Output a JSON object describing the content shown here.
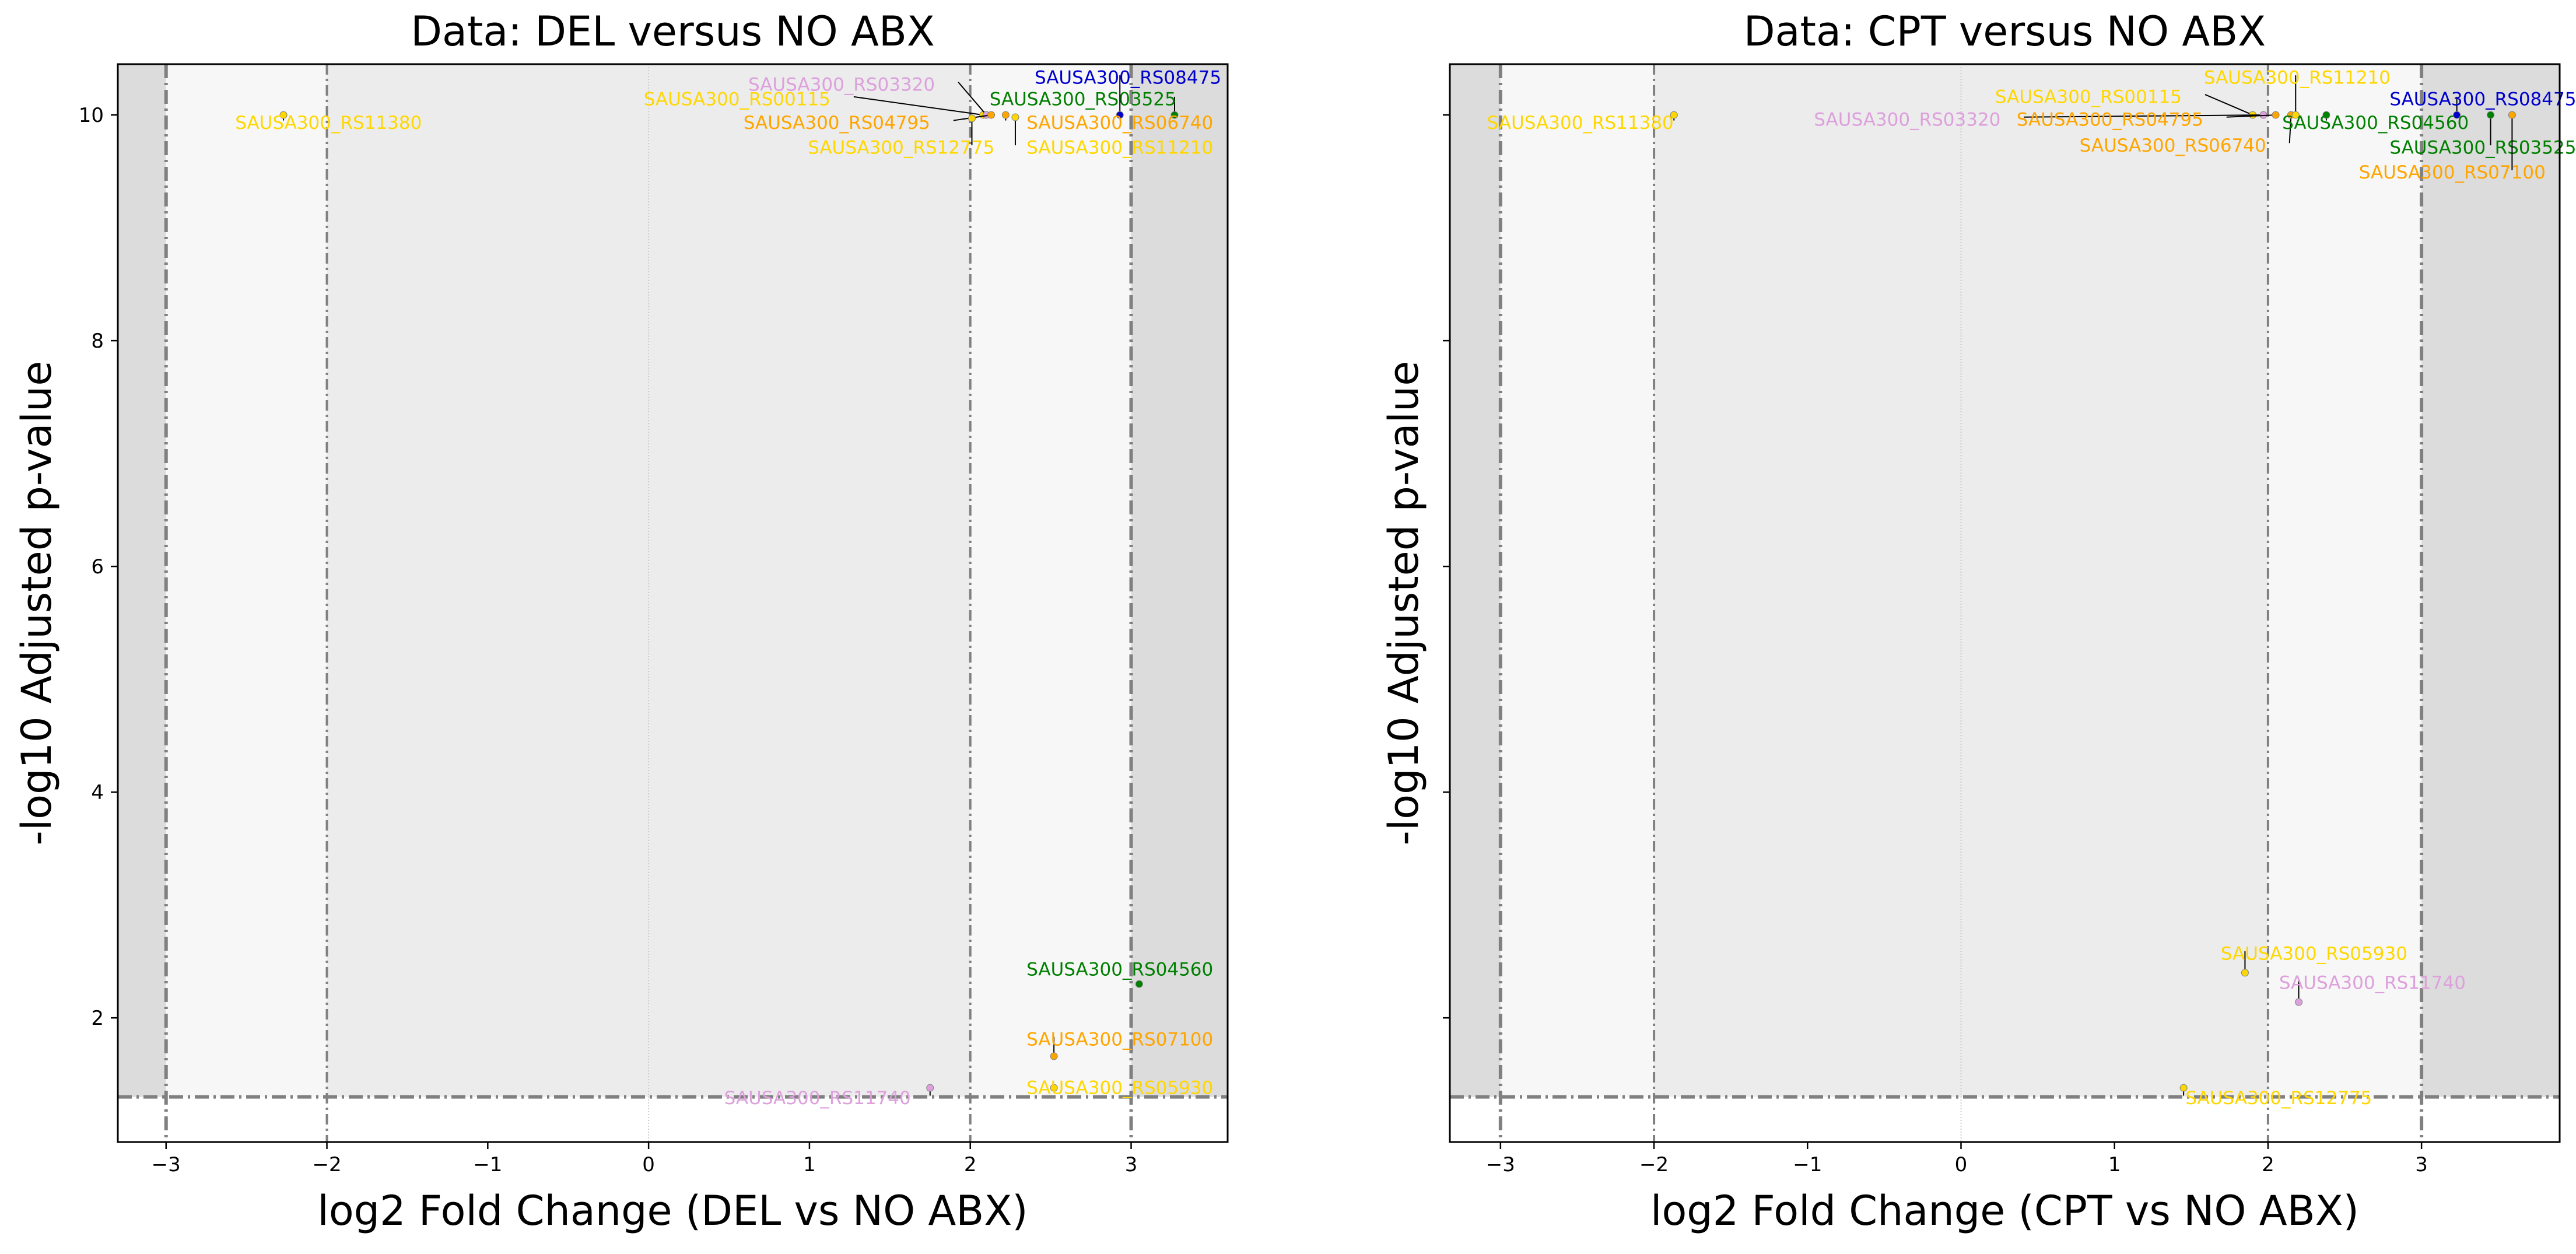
{
  "colors": {
    "background": "#ffffff",
    "band_outer": "#dcdcdc",
    "band_mid": "#f7f7f7",
    "band_inner": "#ececec",
    "threshold_line": "#808080",
    "zero_line": "#cccccc",
    "text": "#000000"
  },
  "chart_data": [
    {
      "type": "scatter",
      "title": "Data: DEL versus NO ABX",
      "xlabel": "log2 Fold Change (DEL vs NO ABX)",
      "ylabel": "-log10 Adjusted p-value",
      "xlim": [
        -3.3,
        3.6
      ],
      "ylim": [
        0.9,
        10.45
      ],
      "xticks": [
        -3,
        -2,
        -1,
        0,
        1,
        2,
        3
      ],
      "yticks": [
        2,
        4,
        6,
        8,
        10
      ],
      "xticklabels": [
        "−3",
        "−2",
        "−1",
        "0",
        "1",
        "2",
        "3"
      ],
      "yticklabels": [
        "2",
        "4",
        "6",
        "8",
        "10"
      ],
      "show_ytick_labels": true,
      "grid": false,
      "threshold_lines": {
        "vertical": [
          -3,
          -2,
          2,
          3
        ],
        "horizontal": 1.3
      },
      "points": [
        {
          "gene": "SAUSA300_RS11380",
          "x": -2.27,
          "y": 10.0,
          "color": "#ffd700",
          "label_x": -1.99,
          "label_y": 9.92
        },
        {
          "gene": "SAUSA300_RS00115",
          "x": 2.08,
          "y": 10.0,
          "color": "#ffd700",
          "label_x": 0.55,
          "label_y": 10.13
        },
        {
          "gene": "SAUSA300_RS03320",
          "x": 2.1,
          "y": 10.0,
          "color": "#dda0dd",
          "label_x": 1.2,
          "label_y": 10.26
        },
        {
          "gene": "SAUSA300_RS04795",
          "x": 2.13,
          "y": 10.0,
          "color": "#ffa500",
          "label_x": 1.17,
          "label_y": 9.92
        },
        {
          "gene": "SAUSA300_RS12775",
          "x": 2.01,
          "y": 9.97,
          "color": "#ffd700",
          "label_x": 1.57,
          "label_y": 9.7
        },
        {
          "gene": "SAUSA300_RS03525",
          "x": 3.27,
          "y": 10.0,
          "color": "#008000",
          "label_x": 2.7,
          "label_y": 10.13
        },
        {
          "gene": "SAUSA300_RS08475",
          "x": 2.93,
          "y": 10.0,
          "color": "#0000cd",
          "label_x": 2.98,
          "label_y": 10.32
        },
        {
          "gene": "SAUSA300_RS06740",
          "x": 2.22,
          "y": 10.0,
          "color": "#ffa500",
          "label_x": 2.93,
          "label_y": 9.92
        },
        {
          "gene": "SAUSA300_RS11210",
          "x": 2.28,
          "y": 9.98,
          "color": "#ffd700",
          "label_x": 2.93,
          "label_y": 9.7
        },
        {
          "gene": "SAUSA300_RS04560",
          "x": 3.05,
          "y": 2.3,
          "color": "#008000",
          "label_x": 2.93,
          "label_y": 2.42
        },
        {
          "gene": "SAUSA300_RS07100",
          "x": 2.52,
          "y": 1.66,
          "color": "#ffa500",
          "label_x": 2.93,
          "label_y": 1.8
        },
        {
          "gene": "SAUSA300_RS05930",
          "x": 2.52,
          "y": 1.38,
          "color": "#ffd700",
          "label_x": 2.93,
          "label_y": 1.37
        },
        {
          "gene": "SAUSA300_RS11740",
          "x": 1.75,
          "y": 1.38,
          "color": "#dda0dd",
          "label_x": 1.05,
          "label_y": 1.28
        }
      ]
    },
    {
      "type": "scatter",
      "title": "Data: CPT versus NO ABX",
      "xlabel": "log2 Fold Change (CPT vs NO ABX)",
      "ylabel": "-log10 Adjusted p-value",
      "xlim": [
        -3.33,
        3.9
      ],
      "ylim": [
        0.9,
        10.45
      ],
      "xticks": [
        -3,
        -2,
        -1,
        0,
        1,
        2,
        3
      ],
      "yticks": [
        2,
        4,
        6,
        8,
        10
      ],
      "xticklabels": [
        "−3",
        "−2",
        "−1",
        "0",
        "1",
        "2",
        "3"
      ],
      "yticklabels": [
        "2",
        "4",
        "6",
        "8",
        "10"
      ],
      "show_ytick_labels": false,
      "grid": false,
      "threshold_lines": {
        "vertical": [
          -3,
          -2,
          2,
          3
        ],
        "horizontal": 1.3
      },
      "points": [
        {
          "gene": "SAUSA300_RS11380",
          "x": -1.87,
          "y": 10.0,
          "color": "#ffd700",
          "label_x": -2.48,
          "label_y": 9.92
        },
        {
          "gene": "SAUSA300_RS00115",
          "x": 1.9,
          "y": 10.0,
          "color": "#ffd700",
          "label_x": 0.83,
          "label_y": 10.15
        },
        {
          "gene": "SAUSA300_RS03320",
          "x": 1.97,
          "y": 10.0,
          "color": "#dda0dd",
          "label_x": -0.35,
          "label_y": 9.95
        },
        {
          "gene": "SAUSA300_RS04795",
          "x": 2.05,
          "y": 10.0,
          "color": "#ffa500",
          "label_x": 0.97,
          "label_y": 9.95
        },
        {
          "gene": "SAUSA300_RS06740",
          "x": 2.15,
          "y": 10.0,
          "color": "#ffa500",
          "label_x": 1.38,
          "label_y": 9.72
        },
        {
          "gene": "SAUSA300_RS11210",
          "x": 2.18,
          "y": 10.0,
          "color": "#ffd700",
          "label_x": 2.19,
          "label_y": 10.32
        },
        {
          "gene": "SAUSA300_RS04560",
          "x": 2.38,
          "y": 10.0,
          "color": "#008000",
          "label_x": 2.7,
          "label_y": 9.92
        },
        {
          "gene": "SAUSA300_RS08475",
          "x": 3.23,
          "y": 10.0,
          "color": "#0000cd",
          "label_x": 3.4,
          "label_y": 10.13
        },
        {
          "gene": "SAUSA300_RS03525",
          "x": 3.45,
          "y": 10.0,
          "color": "#008000",
          "label_x": 3.4,
          "label_y": 9.7
        },
        {
          "gene": "SAUSA300_RS07100",
          "x": 3.59,
          "y": 10.0,
          "color": "#ffa500",
          "label_x": 3.2,
          "label_y": 9.48
        },
        {
          "gene": "SAUSA300_RS05930",
          "x": 1.85,
          "y": 2.4,
          "color": "#ffd700",
          "label_x": 2.3,
          "label_y": 2.56
        },
        {
          "gene": "SAUSA300_RS11740",
          "x": 2.2,
          "y": 2.14,
          "color": "#dda0dd",
          "label_x": 2.68,
          "label_y": 2.3
        },
        {
          "gene": "SAUSA300_RS12775",
          "x": 1.45,
          "y": 1.38,
          "color": "#ffd700",
          "label_x": 2.07,
          "label_y": 1.28
        }
      ]
    }
  ]
}
